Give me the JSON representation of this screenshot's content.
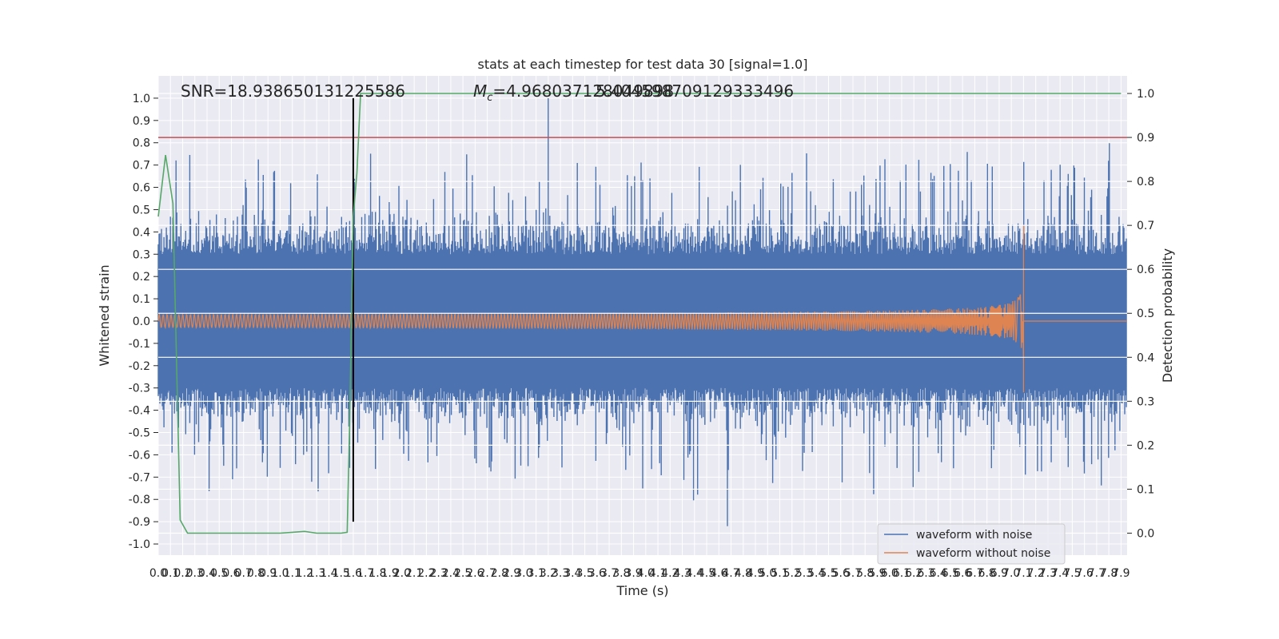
{
  "chart_data": {
    "type": "line",
    "title": "stats at each timestep for test data 30 [signal=1.0]",
    "xlabel": "Time (s)",
    "ylabel": "Whitened strain",
    "ylabel_right": "Detection probability",
    "xlim": [
      0.0,
      7.95
    ],
    "ylim": [
      -1.05,
      1.1
    ],
    "ylim_right": [
      -0.05,
      1.04
    ],
    "x_ticks": [
      0.0,
      0.1,
      0.2,
      0.3,
      0.4,
      0.5,
      0.6,
      0.7,
      0.8,
      0.9,
      1.0,
      1.1,
      1.2,
      1.3,
      1.4,
      1.5,
      1.6,
      1.7,
      1.8,
      1.9,
      2.0,
      2.1,
      2.2,
      2.3,
      2.4,
      2.5,
      2.6,
      2.7,
      2.8,
      2.9,
      3.0,
      3.1,
      3.2,
      3.3,
      3.4,
      3.5,
      3.6,
      3.7,
      3.8,
      3.9,
      4.0,
      4.1,
      4.2,
      4.3,
      4.4,
      4.5,
      4.6,
      4.7,
      4.8,
      4.9,
      5.0,
      5.1,
      5.2,
      5.3,
      5.4,
      5.5,
      5.6,
      5.7,
      5.8,
      5.9,
      6.0,
      6.1,
      6.2,
      6.3,
      6.4,
      6.5,
      6.6,
      6.7,
      6.8,
      6.9,
      7.0,
      7.1,
      7.2,
      7.3,
      7.4,
      7.5,
      7.6,
      7.7,
      7.8,
      7.9
    ],
    "y_ticks": [
      -1.0,
      -0.9,
      -0.8,
      -0.7,
      -0.6,
      -0.5,
      -0.4,
      -0.3,
      -0.2,
      -0.1,
      0.0,
      0.1,
      0.2,
      0.3,
      0.4,
      0.5,
      0.6,
      0.7,
      0.8,
      0.9,
      1.0
    ],
    "y_ticks_right": [
      0.0,
      0.1,
      0.2,
      0.3,
      0.4,
      0.5,
      0.6,
      0.7,
      0.8,
      0.9,
      1.0
    ],
    "annotations": {
      "snr": "SNR=18.938650131225586",
      "mc_symbol": "M",
      "mc_subscript": "c",
      "mc_value": "=4.968037128049898",
      "mc_overlap": "5.404598709129333496"
    },
    "threshold_right": 0.9,
    "trigger_time": 1.6,
    "series": [
      {
        "name": "waveform with noise",
        "color": "#4c72b0",
        "envelope": 0.3,
        "peak_max": 1.0,
        "peak_min": -0.92
      },
      {
        "name": "waveform without noise",
        "color": "#dd8452",
        "start_amplitude": 0.03,
        "peak_amplitude": [
          0.43,
          -0.32
        ],
        "merger_time": 7.1,
        "cycles": 220
      },
      {
        "name": "detection probability",
        "color": "#55a868",
        "axis": "right",
        "x": [
          0.0,
          0.06,
          0.12,
          0.18,
          0.24,
          0.3,
          0.4,
          0.6,
          0.8,
          1.0,
          1.1,
          1.2,
          1.3,
          1.4,
          1.5,
          1.55,
          1.57,
          1.6,
          1.63,
          1.66,
          1.7,
          2.0,
          4.0,
          6.0,
          7.9
        ],
        "y": [
          0.72,
          0.86,
          0.75,
          0.03,
          0.0,
          0.0,
          0.0,
          0.0,
          0.0,
          0.0,
          0.002,
          0.004,
          0.0,
          0.0,
          0.0,
          0.002,
          0.25,
          0.72,
          0.82,
          1.0,
          1.0,
          1.0,
          1.0,
          1.0,
          1.0
        ]
      }
    ],
    "legend": {
      "placement": "lower-right",
      "entries": [
        {
          "label": "waveform with noise",
          "color": "#4c72b0"
        },
        {
          "label": "waveform without noise",
          "color": "#dd8452"
        }
      ]
    },
    "threshold_color": "#c44e52",
    "trigger_color": "#000000"
  }
}
